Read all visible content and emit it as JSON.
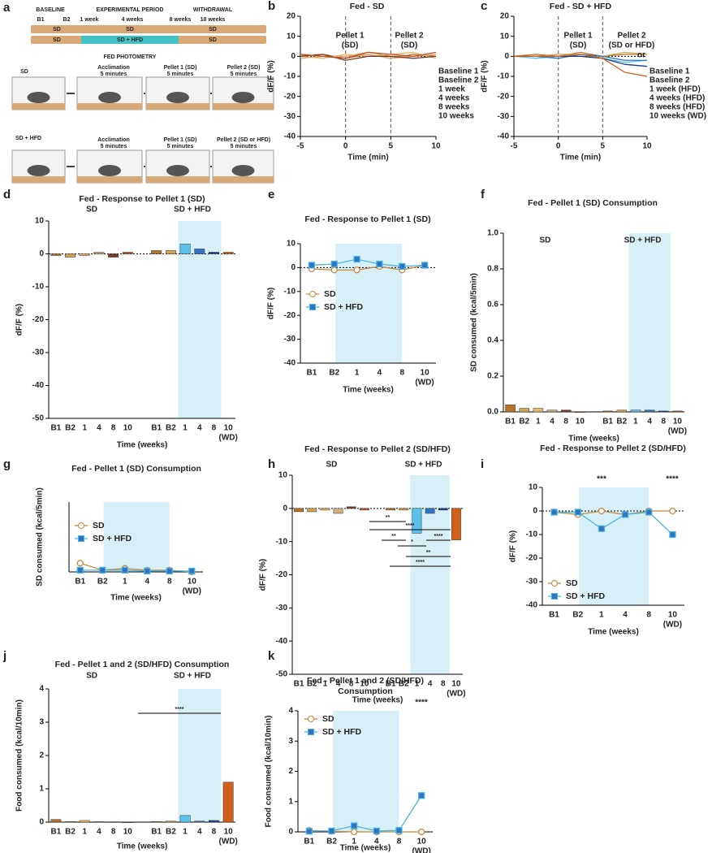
{
  "diagram": {
    "panel": "a",
    "texts": [
      "BASELINE",
      "B1",
      "B2",
      "1 week",
      "EXPERIMENTAL PERIOD",
      "4 weeks",
      "8 weeks",
      "WITHDRAWAL",
      "10 weeks",
      "SD",
      "SD",
      "SD",
      "SD",
      "SD + HFD",
      "SD",
      "FED PHOTOMETRY",
      "SD",
      "Acclimation",
      "5 minutes",
      "Pellet 1 (SD)",
      "5 minutes",
      "Pellet 2 (SD)",
      "5 minutes",
      "SD + HFD",
      "Acclimation",
      "5 minutes",
      "Pellet 1 (SD)",
      "5 minutes",
      "Pellet 2 (SD or HFD)",
      "5 minutes"
    ]
  },
  "chart_data": [
    {
      "panel": "b",
      "type": "line",
      "title": "Fed - SD",
      "x_label": "Time (min)",
      "y_label": "dF/F (%)",
      "x": [
        -5,
        -2.5,
        0,
        2.5,
        5,
        7.5,
        10
      ],
      "xlim": [
        -5,
        10
      ],
      "xticks": [
        -5,
        0,
        5,
        10
      ],
      "ylim": [
        -40,
        20
      ],
      "yticks": [
        -40,
        -30,
        -20,
        -10,
        0,
        10,
        20
      ],
      "vlines": [
        0,
        5
      ],
      "annotations": [
        "Pellet 1",
        "(SD)",
        "Pellet 2",
        "(SD)"
      ],
      "series": [
        {
          "name": "Baseline 1",
          "color": "#b5732c",
          "values": [
            0,
            1,
            -1,
            1,
            -1,
            1,
            0
          ]
        },
        {
          "name": "Baseline 2",
          "color": "#d3a34f",
          "values": [
            1,
            0,
            0,
            2,
            0,
            0,
            1
          ]
        },
        {
          "name": "1 week",
          "color": "#e5b86a",
          "values": [
            0,
            -1,
            1,
            0,
            1,
            2,
            -1
          ]
        },
        {
          "name": "4 weeks",
          "color": "#cfae7f",
          "values": [
            -1,
            0,
            0,
            1,
            -1,
            0,
            1
          ]
        },
        {
          "name": "8 weeks",
          "color": "#7a3b26",
          "values": [
            0,
            1,
            -2,
            0,
            0,
            -1,
            0
          ]
        },
        {
          "name": "10 weeks",
          "color": "#c0502a",
          "values": [
            1,
            0,
            -1,
            2,
            1,
            0,
            2
          ]
        }
      ]
    },
    {
      "panel": "c",
      "type": "line",
      "title": "Fed - SD + HFD",
      "x_label": "Time (min)",
      "y_label": "dF/F (%)",
      "x": [
        -5,
        -2.5,
        0,
        2.5,
        5,
        7.5,
        10
      ],
      "xlim": [
        -5,
        10
      ],
      "xticks": [
        -5,
        0,
        5,
        10
      ],
      "ylim": [
        -40,
        20
      ],
      "yticks": [
        -40,
        -30,
        -20,
        -10,
        0,
        10,
        20
      ],
      "vlines": [
        0,
        5
      ],
      "annotations": [
        "Pellet 1",
        "(SD)",
        "Pellet 2",
        "(SD or HFD)",
        "or"
      ],
      "series": [
        {
          "name": "Baseline 1",
          "color": "#b5732c",
          "values": [
            0,
            1,
            0,
            2,
            0,
            1,
            1
          ]
        },
        {
          "name": "Baseline 2",
          "color": "#d3a34f",
          "values": [
            0,
            0,
            1,
            1,
            0,
            2,
            1
          ]
        },
        {
          "name": "1 week (HFD)",
          "color": "#5bc0eb",
          "values": [
            0,
            -1,
            0,
            1,
            -1,
            -3,
            -2
          ]
        },
        {
          "name": "4 weeks (HFD)",
          "color": "#2f74c0",
          "values": [
            0,
            0,
            -1,
            1,
            0,
            -2,
            -2
          ]
        },
        {
          "name": "8 weeks (HFD)",
          "color": "#1b3f8f",
          "values": [
            0,
            0,
            0,
            0,
            -1,
            -4,
            -5
          ]
        },
        {
          "name": "10 weeks (WD)",
          "color": "#d0601a",
          "values": [
            0,
            0,
            0,
            1,
            -1,
            -8,
            -10
          ]
        }
      ]
    },
    {
      "panel": "d",
      "type": "bar",
      "title": "Fed - Response to Pellet 1 (SD)",
      "x_label": "Time (weeks)",
      "y_label": "dF/F (%)",
      "note": "(WD)",
      "categories": [
        "B1",
        "B2",
        "1",
        "4",
        "8",
        "10"
      ],
      "ylim": [
        -50,
        10
      ],
      "yticks": [
        -50,
        -40,
        -30,
        -20,
        -10,
        0,
        10
      ],
      "series": [
        {
          "name": "SD",
          "color": "#c8873a",
          "colors": [
            "#b5732c",
            "#d3a34f",
            "#e5b86a",
            "#cfae7f",
            "#7a3b26",
            "#c0502a"
          ],
          "values": [
            -0.5,
            -1,
            -0.5,
            0.5,
            -1,
            0.5
          ]
        },
        {
          "name": "SD + HFD",
          "color": "#4ab3e0",
          "colors": [
            "#b5732c",
            "#d3a34f",
            "#5bc0eb",
            "#2f74c0",
            "#1b3f8f",
            "#d0601a"
          ],
          "values": [
            1,
            1,
            3,
            1.5,
            0.5,
            0.5
          ]
        }
      ]
    },
    {
      "panel": "e",
      "type": "line",
      "title": "Fed - Response to Pellet 1 (SD)",
      "x_label": "Time (weeks)",
      "y_label": "dF/F (%)",
      "note": "(WD)",
      "categories": [
        "B1",
        "B2",
        "1",
        "4",
        "8",
        "10"
      ],
      "ylim": [
        -40,
        10
      ],
      "yticks": [
        -40,
        -30,
        -20,
        -10,
        0,
        10
      ],
      "series": [
        {
          "name": "SD",
          "color": "#c8873a",
          "values": [
            -0.5,
            -1,
            -1,
            0.5,
            -1,
            1
          ]
        },
        {
          "name": "SD + HFD",
          "color": "#4ab3e0",
          "values": [
            1,
            1.5,
            3.5,
            1.5,
            0.5,
            1
          ]
        }
      ]
    },
    {
      "panel": "f",
      "type": "bar",
      "title": "Fed - Pellet 1 (SD) Consumption",
      "x_label": "Time (weeks)",
      "y_label": "SD consumed (kcal/5min)",
      "note": "(WD)",
      "categories": [
        "B1",
        "B2",
        "1",
        "4",
        "8",
        "10"
      ],
      "ylim": [
        0,
        1
      ],
      "yticks": [
        {
          "value": 0,
          "label": "0.0"
        },
        {
          "value": 0.2,
          "label": "0.2"
        },
        {
          "value": 0.4,
          "label": "0.4"
        },
        {
          "value": 0.6,
          "label": "0.6"
        },
        {
          "value": 0.8,
          "label": "0.8"
        },
        {
          "value": 1,
          "label": "1.0"
        }
      ],
      "series": [
        {
          "name": "SD",
          "color": "#c8873a",
          "colors": [
            "#b5732c",
            "#d3a34f",
            "#e5b86a",
            "#cfae7f",
            "#7a3b26",
            "#c0502a"
          ],
          "values": [
            0.04,
            0.02,
            0.02,
            0.01,
            0.01,
            0
          ]
        },
        {
          "name": "SD + HFD",
          "color": "#4ab3e0",
          "colors": [
            "#b5732c",
            "#d3a34f",
            "#5bc0eb",
            "#2f74c0",
            "#1b3f8f",
            "#d0601a"
          ],
          "values": [
            0.005,
            0.01,
            0.01,
            0.01,
            0.005,
            0.005
          ]
        }
      ]
    },
    {
      "panel": "g",
      "type": "line",
      "title": "Fed - Pellet 1 (SD) Consumption",
      "x_label": "Time (weeks)",
      "y_label": "SD consumed (kcal/5min)",
      "note": "(WD)",
      "categories": [
        "B1",
        "B2",
        "1",
        "4",
        "8",
        "10"
      ],
      "ylim": [
        0,
        0.4
      ],
      "series": [
        {
          "name": "SD",
          "color": "#c8873a",
          "values": [
            0.05,
            0.01,
            0.02,
            0.01,
            0.01,
            0
          ]
        },
        {
          "name": "SD + HFD",
          "color": "#4ab3e0",
          "values": [
            0.01,
            0.01,
            0.01,
            0.005,
            0.005,
            0.005
          ]
        }
      ]
    },
    {
      "panel": "h",
      "type": "bar",
      "title": "Fed - Response to Pellet 2 (SD/HFD)",
      "x_label": "Time (weeks)",
      "y_label": "dF/F (%)",
      "note": "(WD)",
      "categories": [
        "B1",
        "B2",
        "1",
        "4",
        "8",
        "10"
      ],
      "ylim": [
        -50,
        10
      ],
      "yticks": [
        -50,
        -40,
        -30,
        -20,
        -10,
        0,
        10
      ],
      "annotations": [
        "**",
        "****",
        "**",
        "*",
        "****",
        "**",
        "****"
      ],
      "series": [
        {
          "name": "SD",
          "color": "#c8873a",
          "colors": [
            "#b5732c",
            "#d3a34f",
            "#e5b86a",
            "#cfae7f",
            "#7a3b26",
            "#c0502a"
          ],
          "values": [
            -1,
            -1,
            -0.5,
            -1.5,
            0.5,
            -0.5
          ]
        },
        {
          "name": "SD + HFD",
          "color": "#4ab3e0",
          "colors": [
            "#b5732c",
            "#d3a34f",
            "#5bc0eb",
            "#2f74c0",
            "#1b3f8f",
            "#d0601a"
          ],
          "values": [
            -0.5,
            -0.5,
            -7.5,
            -1.5,
            -0.5,
            -9.5
          ]
        }
      ]
    },
    {
      "panel": "i",
      "type": "line",
      "title": "Fed - Response to Pellet 2 (SD/HFD)",
      "x_label": "Time (weeks)",
      "y_label": "dF/F (%)",
      "note": "(WD)",
      "categories": [
        "B1",
        "B2",
        "1",
        "4",
        "8",
        "10"
      ],
      "ylim": [
        -40,
        10
      ],
      "yticks": [
        -40,
        -30,
        -20,
        -10,
        0,
        10
      ],
      "annotations": [
        "***",
        "****"
      ],
      "series": [
        {
          "name": "SD",
          "color": "#c8873a",
          "values": [
            -0.5,
            -1.5,
            0,
            -1.5,
            0,
            0
          ]
        },
        {
          "name": "SD + HFD",
          "color": "#4ab3e0",
          "values": [
            -0.5,
            -0.5,
            -7.5,
            -1.5,
            -0.5,
            -10
          ]
        }
      ]
    },
    {
      "panel": "j",
      "type": "bar",
      "title": "Fed - Pellet 1 and 2 (SD/HFD) Consumption",
      "x_label": "Time (weeks)",
      "y_label": "Food consumed (kcal/10min)",
      "note": "(WD)",
      "categories": [
        "B1",
        "B2",
        "1",
        "4",
        "8",
        "10"
      ],
      "ylim": [
        0,
        4
      ],
      "yticks": [
        0,
        1,
        2,
        3,
        4
      ],
      "annotations": [
        "****"
      ],
      "series": [
        {
          "name": "SD",
          "color": "#c8873a",
          "colors": [
            "#b5732c",
            "#d3a34f",
            "#e5b86a",
            "#cfae7f",
            "#7a3b26",
            "#c0502a"
          ],
          "values": [
            0.08,
            0.02,
            0.05,
            0.02,
            0.01,
            0
          ]
        },
        {
          "name": "SD + HFD",
          "color": "#4ab3e0",
          "colors": [
            "#b5732c",
            "#d3a34f",
            "#5bc0eb",
            "#2f74c0",
            "#1b3f8f",
            "#d0601a"
          ],
          "values": [
            0.02,
            0.03,
            0.2,
            0.03,
            0.05,
            1.2
          ]
        }
      ]
    },
    {
      "panel": "k",
      "type": "line",
      "title": [
        "Fed - Pellet 1 and 2 (SD/HFD)",
        "Consumption"
      ],
      "x_label": "Time (weeks)",
      "y_label": "Food consumed (kcal/10min)",
      "note": "(WD)",
      "categories": [
        "B1",
        "B2",
        "1",
        "4",
        "8",
        "10"
      ],
      "ylim": [
        0,
        4
      ],
      "yticks": [
        0,
        1,
        2,
        3,
        4
      ],
      "annotations": [
        "****"
      ],
      "series": [
        {
          "name": "SD",
          "color": "#c8873a",
          "values": [
            0.05,
            0.02,
            0,
            0,
            0,
            0
          ]
        },
        {
          "name": "SD + HFD",
          "color": "#4ab3e0",
          "values": [
            0.02,
            0.03,
            0.2,
            0.03,
            0.05,
            1.2
          ]
        }
      ]
    }
  ]
}
